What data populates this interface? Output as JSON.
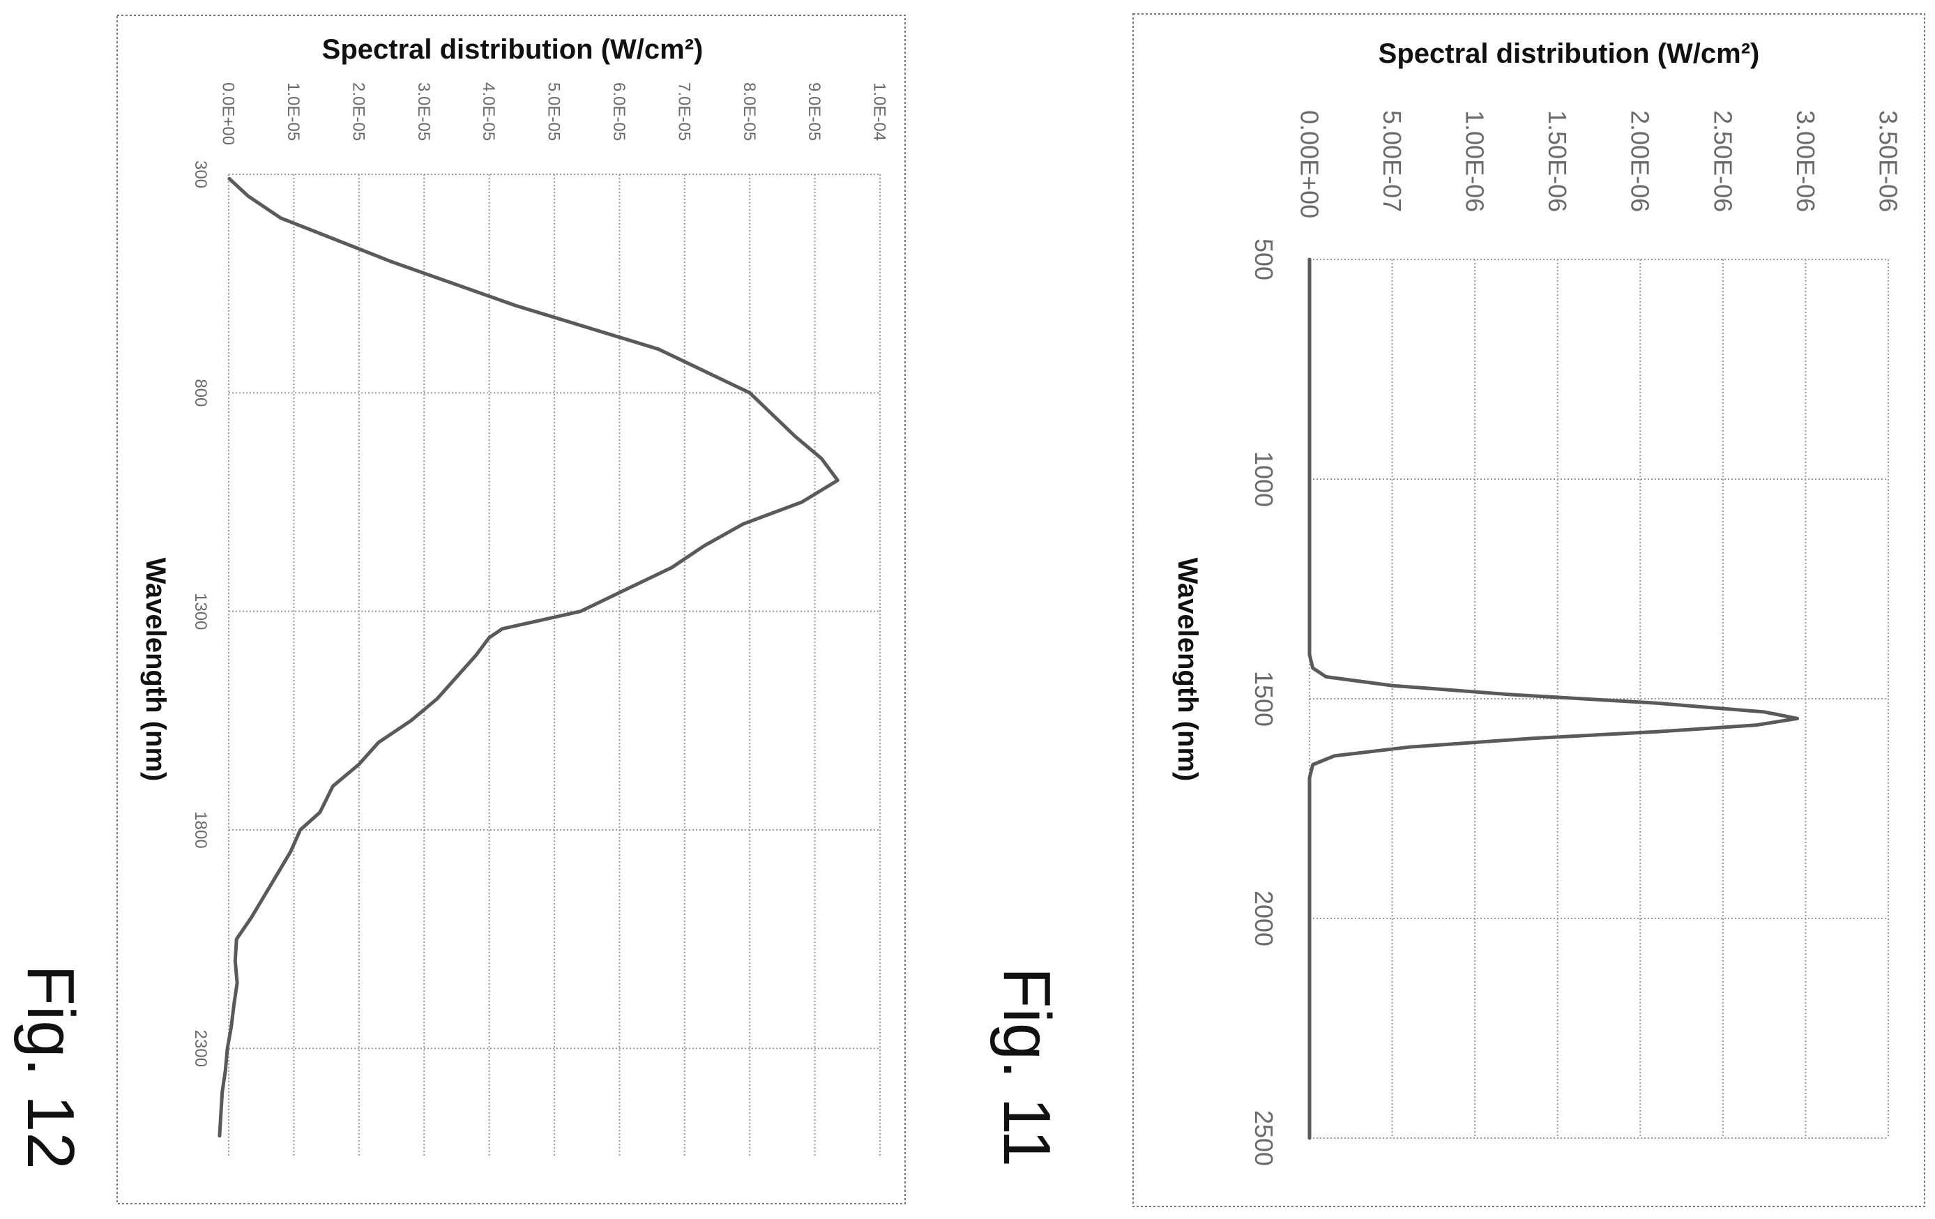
{
  "figures": [
    {
      "label": "Fig. 12"
    },
    {
      "label": "Fig. 11"
    }
  ],
  "chart_data": [
    {
      "type": "line",
      "figure": "Fig. 12",
      "title": "",
      "xlabel": "Wavelength (nm)",
      "ylabel": "Spectral distribution (W/cm²)",
      "xlim": [
        300,
        2550
      ],
      "ylim": [
        0,
        0.0001
      ],
      "x_ticks": [
        "300",
        "800",
        "1300",
        "1800",
        "2300"
      ],
      "y_ticks": [
        "0.0E+00",
        "1.0E-05",
        "2.0E-05",
        "3.0E-05",
        "4.0E-05",
        "5.0E-05",
        "6.0E-05",
        "7.0E-05",
        "8.0E-05",
        "9.0E-05",
        "1.0E-04"
      ],
      "grid": true,
      "series": [
        {
          "x": [
            310,
            350,
            400,
            500,
            600,
            700,
            800,
            900,
            950,
            1000,
            1050,
            1100,
            1150,
            1200,
            1250,
            1300,
            1340,
            1360,
            1400,
            1450,
            1500,
            1550,
            1600,
            1650,
            1700,
            1760,
            1800,
            1850,
            1900,
            1950,
            2000,
            2050,
            2100,
            2150,
            2200,
            2250,
            2300,
            2350,
            2400,
            2450,
            2500
          ],
          "y": [
            1e-07,
            3e-06,
            8e-06,
            2.5e-05,
            4.4e-05,
            6.6e-05,
            8e-05,
            8.7e-05,
            9.1e-05,
            9.35e-05,
            8.8e-05,
            7.9e-05,
            7.3e-05,
            6.8e-05,
            6.1e-05,
            5.4e-05,
            4.2e-05,
            4e-05,
            3.8e-05,
            3.5e-05,
            3.2e-05,
            2.8e-05,
            2.3e-05,
            2e-05,
            1.6e-05,
            1.4e-05,
            1.1e-05,
            9.5e-06,
            7.5e-06,
            5.5e-06,
            3.5e-06,
            1.2e-06,
            1e-06,
            1.3e-06,
            8e-07,
            4e-07,
            -2e-07,
            -5e-07,
            -1e-06,
            -1.2e-06,
            -1.4e-06
          ]
        }
      ]
    },
    {
      "type": "line",
      "figure": "Fig. 11",
      "title": "",
      "xlabel": "Wavelength (nm)",
      "ylabel": "Spectral distribution (W/cm²)",
      "xlim": [
        500,
        2500
      ],
      "ylim": [
        0,
        3.5e-06
      ],
      "x_ticks": [
        "500",
        "1000",
        "1500",
        "2000",
        "2500"
      ],
      "y_ticks": [
        "0.00E+00",
        "5.00E-07",
        "1.00E-06",
        "1.50E-06",
        "2.00E-06",
        "2.50E-06",
        "3.00E-06",
        "3.50E-06"
      ],
      "grid": true,
      "series": [
        {
          "x": [
            500,
            800,
            1000,
            1200,
            1400,
            1430,
            1450,
            1470,
            1490,
            1510,
            1530,
            1545,
            1560,
            1575,
            1590,
            1610,
            1630,
            1650,
            1680,
            1800,
            2000,
            2200,
            2500
          ],
          "y": [
            0,
            0,
            0,
            0,
            0,
            2e-08,
            1e-07,
            5e-07,
            1.2e-06,
            2.1e-06,
            2.75e-06,
            2.95e-06,
            2.7e-06,
            2.1e-06,
            1.35e-06,
            6e-07,
            1.5e-07,
            2e-08,
            0,
            0,
            0,
            0,
            0
          ]
        }
      ]
    }
  ]
}
